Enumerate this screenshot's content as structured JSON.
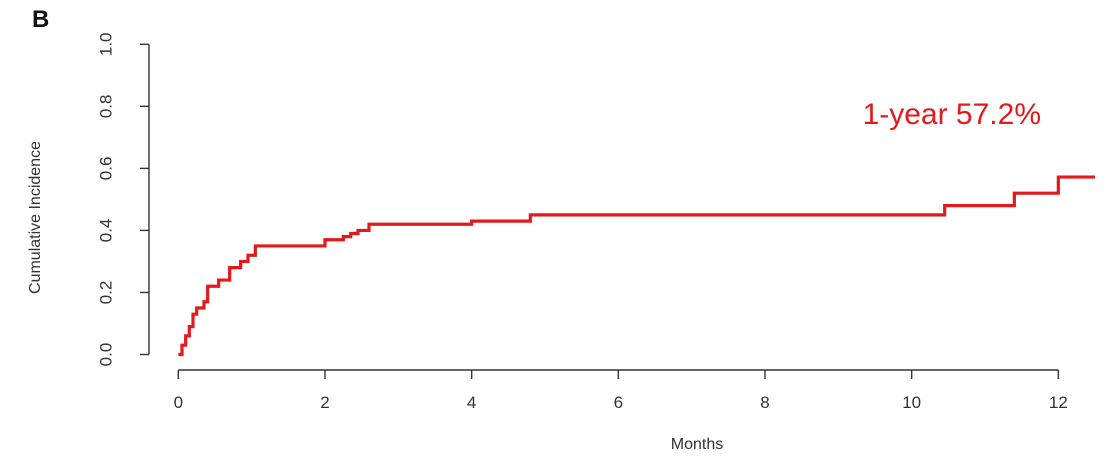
{
  "panel_label": "B",
  "chart_data": {
    "type": "line",
    "xlabel": "Months",
    "ylabel": "Cumulative Incidence",
    "xlim": [
      -0.4,
      12.5
    ],
    "ylim": [
      -0.05,
      1.03
    ],
    "x_ticks": [
      0,
      2,
      4,
      6,
      8,
      10,
      12
    ],
    "y_ticks": [
      0.0,
      0.2,
      0.4,
      0.6,
      0.8,
      1.0
    ],
    "x_tick_labels": [
      "0",
      "2",
      "4",
      "6",
      "8",
      "10",
      "12"
    ],
    "y_tick_labels": [
      "0.0",
      "0.2",
      "0.4",
      "0.6",
      "0.8",
      "1.0"
    ],
    "grid": false,
    "line_color": "#e31a1c",
    "annotation": "1-year 57.2%",
    "annotation_color": "#e31a1c",
    "series": [
      {
        "step": true,
        "x": [
          0,
          0.05,
          0.1,
          0.15,
          0.2,
          0.25,
          0.35,
          0.4,
          0.55,
          0.7,
          0.85,
          0.95,
          1.05,
          2.0,
          2.25,
          2.35,
          2.45,
          2.6,
          3.0,
          4.0,
          4.8,
          6.0,
          8.0,
          10.45,
          11.4,
          12.0,
          12.5
        ],
        "y": [
          0.0,
          0.03,
          0.06,
          0.09,
          0.13,
          0.15,
          0.17,
          0.22,
          0.24,
          0.28,
          0.3,
          0.32,
          0.35,
          0.37,
          0.38,
          0.39,
          0.4,
          0.42,
          0.42,
          0.43,
          0.45,
          0.45,
          0.45,
          0.48,
          0.52,
          0.572,
          0.572
        ]
      }
    ]
  }
}
